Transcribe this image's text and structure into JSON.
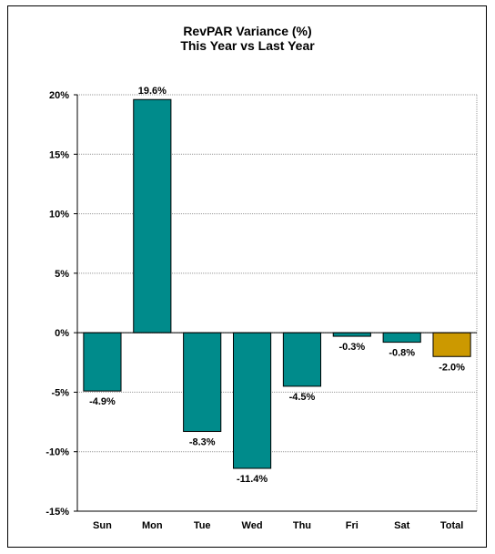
{
  "chart_data": {
    "type": "bar",
    "title": "RevPAR Variance (%)",
    "subtitle": "This Year vs Last Year",
    "xlabel": "",
    "ylabel": "",
    "categories": [
      "Sun",
      "Mon",
      "Tue",
      "Wed",
      "Thu",
      "Fri",
      "Sat",
      "Total"
    ],
    "values": [
      -4.9,
      19.6,
      -8.3,
      -11.4,
      -4.5,
      -0.3,
      -0.8,
      -2.0
    ],
    "data_labels": [
      "-4.9%",
      "19.6%",
      "-8.3%",
      "-11.4%",
      "-4.5%",
      "-0.3%",
      "-0.8%",
      "-2.0%"
    ],
    "ylim": [
      -15,
      20
    ],
    "yticks": [
      20,
      15,
      10,
      5,
      0,
      -5,
      -10,
      -15
    ],
    "ytick_labels": [
      "20%",
      "15%",
      "10%",
      "5%",
      "0%",
      "-5%",
      "-10%",
      "-15%"
    ],
    "grid": true,
    "legend": "none",
    "colors": {
      "bar": "#008B8B",
      "total": "#CC9900",
      "outline": "#000000",
      "grid": "#999999"
    }
  }
}
